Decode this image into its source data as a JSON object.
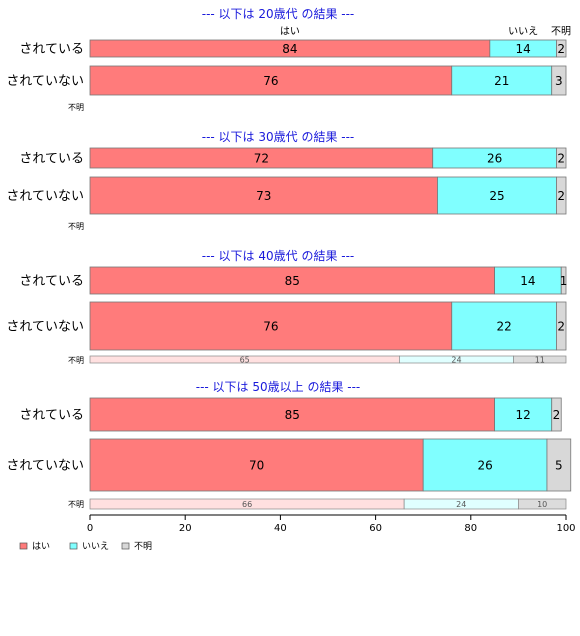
{
  "colors": {
    "yes": "#ff7b7b",
    "no": "#80ffff",
    "unknown": "#d8d8d8",
    "yes_light": "#ffe0e0",
    "no_light": "#e0ffff",
    "unknown_light": "#dcdcdc",
    "title": "#1a1adb"
  },
  "chart_data": {
    "type": "bar",
    "orientation": "horizontal",
    "stacked": true,
    "xlim": [
      0,
      100
    ],
    "xticks": [
      "0",
      "20",
      "40",
      "60",
      "80",
      "100"
    ],
    "categories": [
      "はい",
      "いいえ",
      "不明"
    ],
    "category_header": {
      "yes": "はい",
      "no": "いいえ",
      "unknown": "不明"
    },
    "legend": [
      "はい",
      "いいえ",
      "不明"
    ],
    "panels": [
      {
        "title": "--- 以下は 20歳代 の結果 ---",
        "rows": [
          {
            "label": "されている",
            "values": [
              84,
              14,
              2
            ]
          },
          {
            "label": "されていない",
            "values": [
              76,
              21,
              3
            ]
          }
        ],
        "unknown_label": "不明",
        "unknown_values": []
      },
      {
        "title": "--- 以下は 30歳代 の結果 ---",
        "rows": [
          {
            "label": "されている",
            "values": [
              72,
              26,
              2
            ]
          },
          {
            "label": "されていない",
            "values": [
              73,
              25,
              2
            ]
          }
        ],
        "unknown_label": "不明",
        "unknown_values": []
      },
      {
        "title": "--- 以下は 40歳代 の結果 ---",
        "rows": [
          {
            "label": "されている",
            "values": [
              85,
              14,
              1
            ]
          },
          {
            "label": "されていない",
            "values": [
              76,
              22,
              2
            ]
          }
        ],
        "unknown_label": "不明",
        "unknown_values": [
          65,
          24,
          11
        ]
      },
      {
        "title": "--- 以下は 50歳以上 の結果 ---",
        "rows": [
          {
            "label": "されている",
            "values": [
              85,
              12,
              2
            ]
          },
          {
            "label": "されていない",
            "values": [
              70,
              26,
              5
            ]
          }
        ],
        "unknown_label": "不明",
        "unknown_values": [
          66,
          24,
          10
        ]
      }
    ]
  }
}
